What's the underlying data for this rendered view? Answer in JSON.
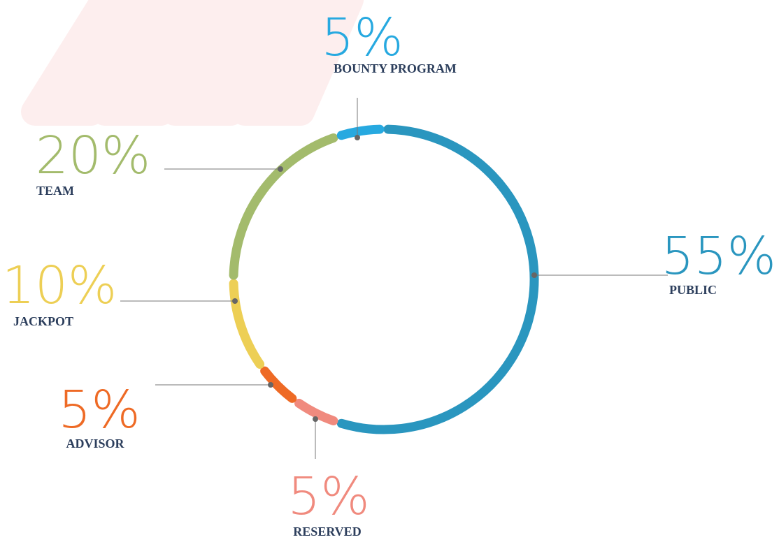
{
  "chart_data": {
    "type": "donut",
    "categories": [
      "PUBLIC",
      "RESERVED",
      "ADVISOR",
      "JACKPOT",
      "TEAM",
      "BOUNTY PROGRAM"
    ],
    "values": [
      55,
      5,
      5,
      10,
      20,
      5
    ],
    "value_labels": [
      "55%",
      "5%",
      "5%",
      "10%",
      "20%",
      "5%"
    ],
    "colors": [
      "#2a96bf",
      "#f08a7e",
      "#ee6a25",
      "#edcf55",
      "#a3bb6c",
      "#27a9e0"
    ]
  }
}
